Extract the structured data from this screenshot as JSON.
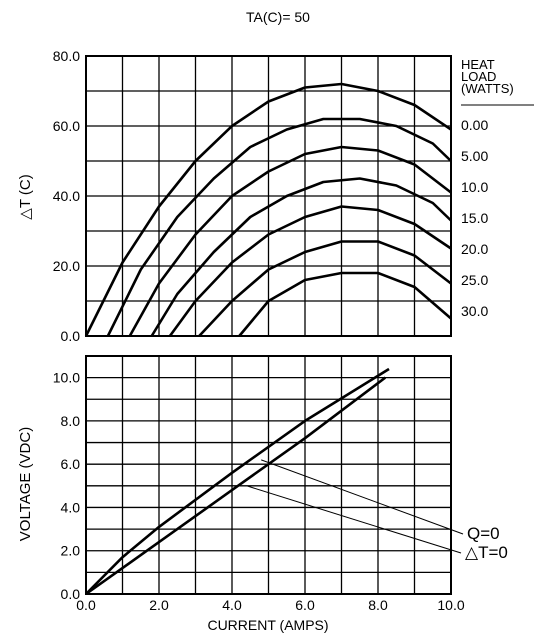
{
  "chart_data": [
    {
      "id": "delta_t",
      "type": "line",
      "title": "TA(C)= 50",
      "xlabel": "",
      "ylabel": "△T (C)",
      "xlim": [
        0,
        10
      ],
      "ylim": [
        0,
        80
      ],
      "x_grid_step": 1,
      "y_grid_step": 10,
      "y_ticks": [
        "0.0",
        "20.0",
        "40.0",
        "60.0",
        "80.0"
      ],
      "grid": true,
      "legend": {
        "title": [
          "HEAT",
          "LOAD",
          "(WATTS)"
        ],
        "placement": "right",
        "entries": [
          "0.00",
          "5.00",
          "10.0",
          "15.0",
          "20.0",
          "25.0",
          "30.0"
        ]
      },
      "series": [
        {
          "name": "0.00",
          "points": [
            [
              0.0,
              0
            ],
            [
              1.0,
              21
            ],
            [
              2.0,
              37
            ],
            [
              3.0,
              50
            ],
            [
              4.0,
              60
            ],
            [
              5.0,
              67
            ],
            [
              6.0,
              71
            ],
            [
              7.0,
              72
            ],
            [
              8.0,
              70
            ],
            [
              9.0,
              66
            ],
            [
              10.0,
              59
            ]
          ]
        },
        {
          "name": "5.00",
          "points": [
            [
              0.6,
              0
            ],
            [
              1.5,
              19
            ],
            [
              2.5,
              34
            ],
            [
              3.5,
              45
            ],
            [
              4.5,
              54
            ],
            [
              5.5,
              59
            ],
            [
              6.5,
              62
            ],
            [
              7.5,
              62
            ],
            [
              8.5,
              60
            ],
            [
              9.5,
              55
            ],
            [
              10.0,
              50
            ]
          ]
        },
        {
          "name": "10.0",
          "points": [
            [
              1.2,
              0
            ],
            [
              2.0,
              15
            ],
            [
              3.0,
              29
            ],
            [
              4.0,
              40
            ],
            [
              5.0,
              47
            ],
            [
              6.0,
              52
            ],
            [
              7.0,
              54
            ],
            [
              8.0,
              53
            ],
            [
              9.0,
              49
            ],
            [
              10.0,
              41
            ]
          ]
        },
        {
          "name": "15.0",
          "points": [
            [
              1.8,
              0
            ],
            [
              2.5,
              12
            ],
            [
              3.5,
              24
            ],
            [
              4.5,
              34
            ],
            [
              5.5,
              40
            ],
            [
              6.5,
              44
            ],
            [
              7.5,
              45
            ],
            [
              8.5,
              43
            ],
            [
              9.5,
              38
            ],
            [
              10.0,
              33
            ]
          ]
        },
        {
          "name": "20.0",
          "points": [
            [
              2.3,
              0
            ],
            [
              3.0,
              10
            ],
            [
              4.0,
              21
            ],
            [
              5.0,
              29
            ],
            [
              6.0,
              34
            ],
            [
              7.0,
              37
            ],
            [
              8.0,
              36
            ],
            [
              9.0,
              32
            ],
            [
              10.0,
              25
            ]
          ]
        },
        {
          "name": "25.0",
          "points": [
            [
              3.1,
              0
            ],
            [
              4.0,
              10
            ],
            [
              5.0,
              19
            ],
            [
              6.0,
              24
            ],
            [
              7.0,
              27
            ],
            [
              8.0,
              27
            ],
            [
              9.0,
              23
            ],
            [
              10.0,
              15
            ]
          ]
        },
        {
          "name": "30.0",
          "points": [
            [
              4.2,
              0
            ],
            [
              5.0,
              10
            ],
            [
              6.0,
              16
            ],
            [
              7.0,
              18
            ],
            [
              8.0,
              18
            ],
            [
              9.0,
              14
            ],
            [
              10.0,
              5
            ]
          ]
        }
      ]
    },
    {
      "id": "voltage",
      "type": "line",
      "title": "",
      "xlabel": "CURRENT (AMPS)",
      "ylabel": "VOLTAGE (VDC)",
      "xlim": [
        0,
        10
      ],
      "ylim": [
        0,
        11
      ],
      "x_grid_step": 1,
      "y_grid_step": 1,
      "x_ticks": [
        "0.0",
        "2.0",
        "4.0",
        "6.0",
        "8.0",
        "10.0"
      ],
      "y_ticks": [
        "0.0",
        "2.0",
        "4.0",
        "6.0",
        "8.0",
        "10.0"
      ],
      "grid": true,
      "series": [
        {
          "name": "Q=0",
          "points": [
            [
              0.0,
              0.0
            ],
            [
              1.0,
              1.7
            ],
            [
              2.0,
              3.1
            ],
            [
              4.0,
              5.6
            ],
            [
              6.0,
              8.0
            ],
            [
              8.3,
              10.4
            ]
          ]
        },
        {
          "name": "△T=0",
          "points": [
            [
              0.0,
              0.0
            ],
            [
              2.0,
              2.4
            ],
            [
              4.0,
              4.8
            ],
            [
              6.0,
              7.2
            ],
            [
              8.2,
              10.0
            ]
          ]
        }
      ],
      "annotations": [
        {
          "text": "Q=0",
          "target": [
            4.8,
            6.2
          ]
        },
        {
          "text": "△T=0",
          "target": [
            4.4,
            5.0
          ]
        }
      ]
    }
  ]
}
